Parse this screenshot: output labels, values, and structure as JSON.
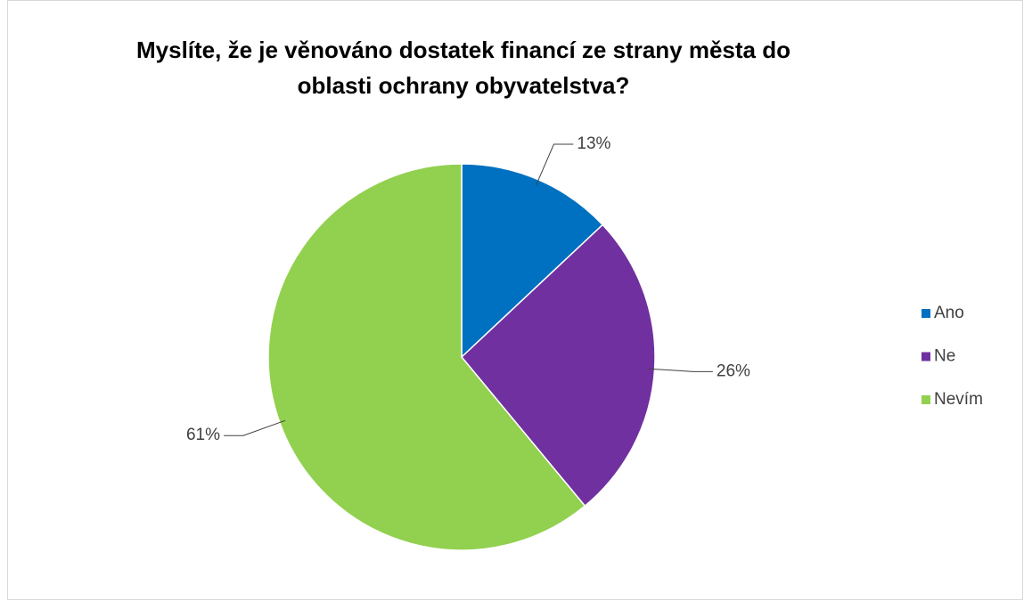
{
  "chart_data": {
    "type": "pie",
    "title": "Myslíte, že je věnováno dostatek financí ze strany města do oblasti ochrany obyvatelstva?",
    "categories": [
      "Ano",
      "Ne",
      "Nevím"
    ],
    "values": [
      13,
      26,
      61
    ],
    "value_labels": [
      "13%",
      "26%",
      "61%"
    ],
    "colors": [
      "#0070c0",
      "#7030a0",
      "#92d050"
    ],
    "legend": "right"
  }
}
